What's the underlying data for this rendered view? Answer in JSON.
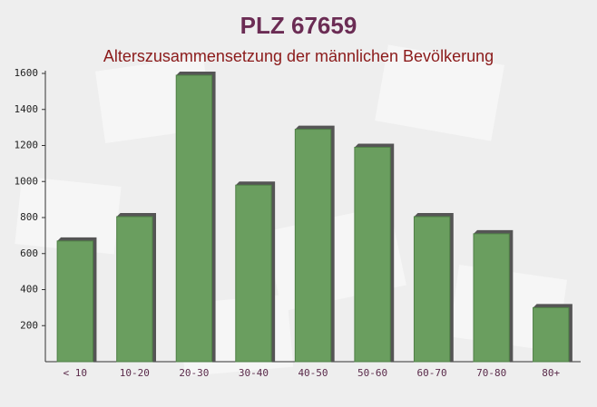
{
  "chart_data": {
    "type": "bar",
    "title": "PLZ 67659",
    "subtitle": "Alterszusammensetzung der männlichen Bevölkerung",
    "categories": [
      "< 10",
      "10-20",
      "20-30",
      "30-40",
      "40-50",
      "50-60",
      "60-70",
      "70-80",
      "80+"
    ],
    "values": [
      670,
      805,
      1590,
      980,
      1290,
      1190,
      805,
      710,
      300
    ],
    "color": "#6a9e5f",
    "ylim": [
      0,
      1600
    ],
    "yticks": [
      200,
      400,
      600,
      800,
      1000,
      1200,
      1400,
      1600
    ],
    "grid": false
  }
}
